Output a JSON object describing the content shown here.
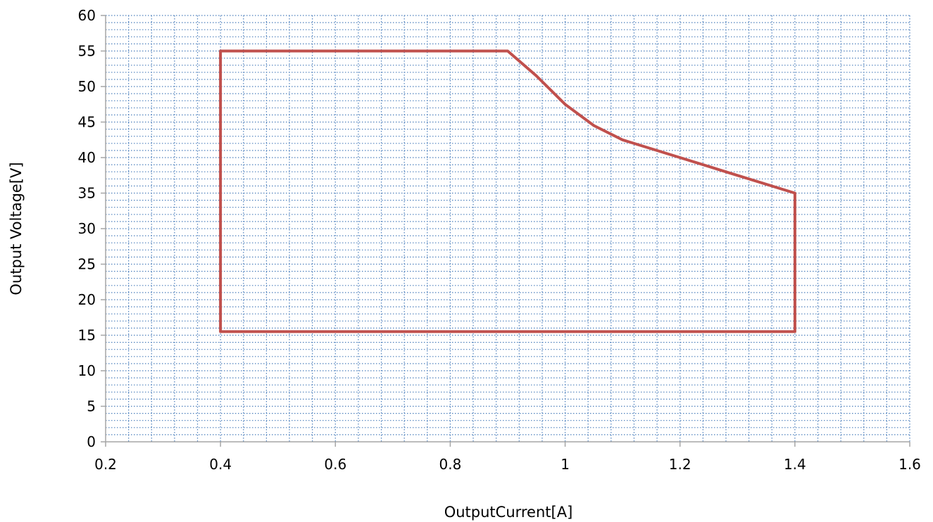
{
  "chart_data": {
    "type": "line",
    "title": "",
    "xlabel": "OutputCurrent[A]",
    "ylabel": "Output Voltage[V]",
    "xlim": [
      0.2,
      1.6
    ],
    "ylim": [
      0,
      60
    ],
    "xticks": [
      0.2,
      0.4,
      0.6,
      0.8,
      1,
      1.2,
      1.4,
      1.6
    ],
    "xtick_labels": [
      "0.2",
      "0.4",
      "0.6",
      "0.8",
      "1",
      "1.2",
      "1.4",
      "1.6"
    ],
    "yticks": [
      0,
      5,
      10,
      15,
      20,
      25,
      30,
      35,
      40,
      45,
      50,
      55,
      60
    ],
    "ytick_labels": [
      "0",
      "5",
      "10",
      "15",
      "20",
      "25",
      "30",
      "35",
      "40",
      "45",
      "50",
      "55",
      "60"
    ],
    "grid": true,
    "legend": "none",
    "series": [
      {
        "color": "#c0504d",
        "x": [
          0.4,
          0.4,
          0.9,
          0.95,
          1.0,
          1.05,
          1.1,
          1.2,
          1.3,
          1.4,
          1.4,
          0.4
        ],
        "y": [
          15.5,
          55,
          55,
          51.5,
          47.5,
          44.5,
          42.5,
          40,
          37.5,
          35,
          15.5,
          15.5
        ]
      }
    ]
  }
}
